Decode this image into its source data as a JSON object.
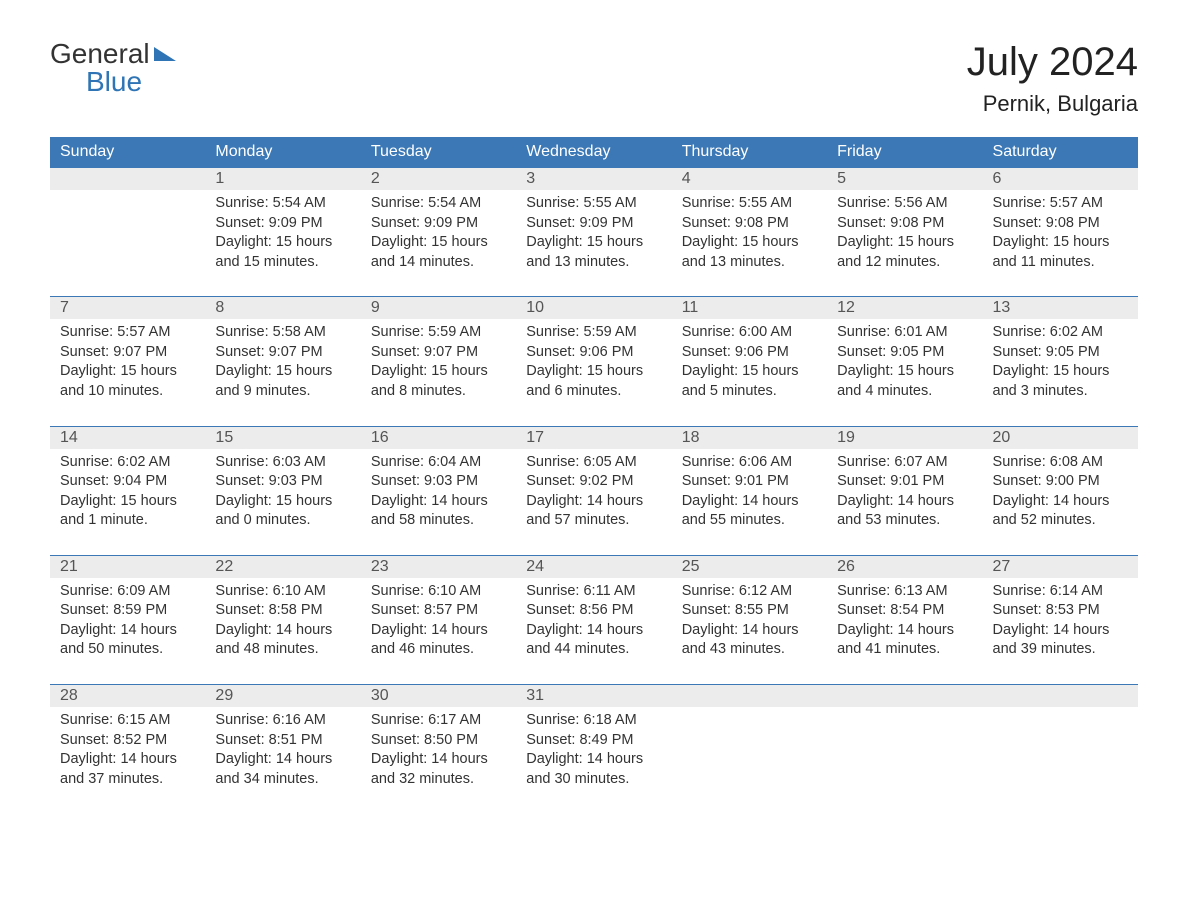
{
  "logo": {
    "line1": "General",
    "line2": "Blue"
  },
  "title": "July 2024",
  "location": "Pernik, Bulgaria",
  "colors": {
    "header_bg": "#3b78b5",
    "header_fg": "#ffffff",
    "daynum_bg": "#ececec",
    "daynum_fg": "#555555",
    "text": "#333333",
    "logo_accent": "#2f75b5",
    "page_bg": "#ffffff",
    "row_border": "#3b78b5"
  },
  "typography": {
    "title_fontsize": 40,
    "location_fontsize": 22,
    "header_fontsize": 16,
    "daynum_fontsize": 16,
    "body_fontsize": 14.5,
    "font_family": "Arial"
  },
  "day_headers": [
    "Sunday",
    "Monday",
    "Tuesday",
    "Wednesday",
    "Thursday",
    "Friday",
    "Saturday"
  ],
  "labels": {
    "sunrise": "Sunrise:",
    "sunset": "Sunset:",
    "daylight": "Daylight:"
  },
  "weeks": [
    [
      null,
      {
        "n": "1",
        "sunrise": "5:54 AM",
        "sunset": "9:09 PM",
        "daylight": "15 hours and 15 minutes."
      },
      {
        "n": "2",
        "sunrise": "5:54 AM",
        "sunset": "9:09 PM",
        "daylight": "15 hours and 14 minutes."
      },
      {
        "n": "3",
        "sunrise": "5:55 AM",
        "sunset": "9:09 PM",
        "daylight": "15 hours and 13 minutes."
      },
      {
        "n": "4",
        "sunrise": "5:55 AM",
        "sunset": "9:08 PM",
        "daylight": "15 hours and 13 minutes."
      },
      {
        "n": "5",
        "sunrise": "5:56 AM",
        "sunset": "9:08 PM",
        "daylight": "15 hours and 12 minutes."
      },
      {
        "n": "6",
        "sunrise": "5:57 AM",
        "sunset": "9:08 PM",
        "daylight": "15 hours and 11 minutes."
      }
    ],
    [
      {
        "n": "7",
        "sunrise": "5:57 AM",
        "sunset": "9:07 PM",
        "daylight": "15 hours and 10 minutes."
      },
      {
        "n": "8",
        "sunrise": "5:58 AM",
        "sunset": "9:07 PM",
        "daylight": "15 hours and 9 minutes."
      },
      {
        "n": "9",
        "sunrise": "5:59 AM",
        "sunset": "9:07 PM",
        "daylight": "15 hours and 8 minutes."
      },
      {
        "n": "10",
        "sunrise": "5:59 AM",
        "sunset": "9:06 PM",
        "daylight": "15 hours and 6 minutes."
      },
      {
        "n": "11",
        "sunrise": "6:00 AM",
        "sunset": "9:06 PM",
        "daylight": "15 hours and 5 minutes."
      },
      {
        "n": "12",
        "sunrise": "6:01 AM",
        "sunset": "9:05 PM",
        "daylight": "15 hours and 4 minutes."
      },
      {
        "n": "13",
        "sunrise": "6:02 AM",
        "sunset": "9:05 PM",
        "daylight": "15 hours and 3 minutes."
      }
    ],
    [
      {
        "n": "14",
        "sunrise": "6:02 AM",
        "sunset": "9:04 PM",
        "daylight": "15 hours and 1 minute."
      },
      {
        "n": "15",
        "sunrise": "6:03 AM",
        "sunset": "9:03 PM",
        "daylight": "15 hours and 0 minutes."
      },
      {
        "n": "16",
        "sunrise": "6:04 AM",
        "sunset": "9:03 PM",
        "daylight": "14 hours and 58 minutes."
      },
      {
        "n": "17",
        "sunrise": "6:05 AM",
        "sunset": "9:02 PM",
        "daylight": "14 hours and 57 minutes."
      },
      {
        "n": "18",
        "sunrise": "6:06 AM",
        "sunset": "9:01 PM",
        "daylight": "14 hours and 55 minutes."
      },
      {
        "n": "19",
        "sunrise": "6:07 AM",
        "sunset": "9:01 PM",
        "daylight": "14 hours and 53 minutes."
      },
      {
        "n": "20",
        "sunrise": "6:08 AM",
        "sunset": "9:00 PM",
        "daylight": "14 hours and 52 minutes."
      }
    ],
    [
      {
        "n": "21",
        "sunrise": "6:09 AM",
        "sunset": "8:59 PM",
        "daylight": "14 hours and 50 minutes."
      },
      {
        "n": "22",
        "sunrise": "6:10 AM",
        "sunset": "8:58 PM",
        "daylight": "14 hours and 48 minutes."
      },
      {
        "n": "23",
        "sunrise": "6:10 AM",
        "sunset": "8:57 PM",
        "daylight": "14 hours and 46 minutes."
      },
      {
        "n": "24",
        "sunrise": "6:11 AM",
        "sunset": "8:56 PM",
        "daylight": "14 hours and 44 minutes."
      },
      {
        "n": "25",
        "sunrise": "6:12 AM",
        "sunset": "8:55 PM",
        "daylight": "14 hours and 43 minutes."
      },
      {
        "n": "26",
        "sunrise": "6:13 AM",
        "sunset": "8:54 PM",
        "daylight": "14 hours and 41 minutes."
      },
      {
        "n": "27",
        "sunrise": "6:14 AM",
        "sunset": "8:53 PM",
        "daylight": "14 hours and 39 minutes."
      }
    ],
    [
      {
        "n": "28",
        "sunrise": "6:15 AM",
        "sunset": "8:52 PM",
        "daylight": "14 hours and 37 minutes."
      },
      {
        "n": "29",
        "sunrise": "6:16 AM",
        "sunset": "8:51 PM",
        "daylight": "14 hours and 34 minutes."
      },
      {
        "n": "30",
        "sunrise": "6:17 AM",
        "sunset": "8:50 PM",
        "daylight": "14 hours and 32 minutes."
      },
      {
        "n": "31",
        "sunrise": "6:18 AM",
        "sunset": "8:49 PM",
        "daylight": "14 hours and 30 minutes."
      },
      null,
      null,
      null
    ]
  ]
}
